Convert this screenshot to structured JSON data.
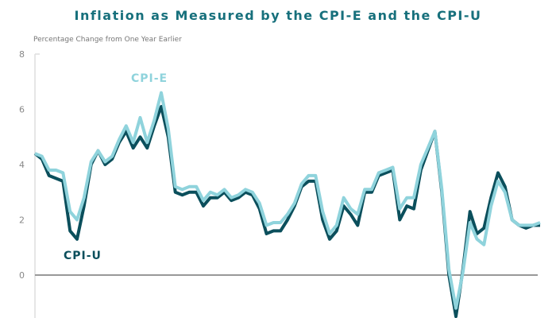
{
  "chart_data": {
    "type": "line",
    "title": "Inflation as Measured by the CPI-E and the CPI-U",
    "ylabel": "Percentage Change from One Year Earlier",
    "xlabel": "",
    "ylim": [
      -1.5,
      8
    ],
    "yticks": [
      "8",
      "6",
      "4",
      "2",
      "0"
    ],
    "grid": false,
    "x": [
      0,
      1,
      2,
      3,
      4,
      5,
      6,
      7,
      8,
      9,
      10,
      11,
      12,
      13,
      14,
      15,
      16,
      17,
      18,
      19,
      20,
      21,
      22,
      23,
      24,
      25,
      26,
      27,
      28,
      29,
      30,
      31,
      32,
      33,
      34,
      35,
      36,
      37,
      38,
      39,
      40,
      41,
      42,
      43,
      44,
      45,
      46,
      47,
      48,
      49,
      50,
      51,
      52,
      53,
      54,
      55,
      56,
      57,
      58,
      59,
      60,
      61,
      62,
      63,
      64,
      65,
      66,
      67,
      68,
      69,
      70,
      71,
      72
    ],
    "series": [
      {
        "name": "CPI-E",
        "color": "#8fd3dc",
        "values": [
          4.4,
          4.3,
          3.8,
          3.8,
          3.7,
          2.3,
          2.0,
          2.8,
          4.1,
          4.5,
          4.1,
          4.3,
          4.9,
          5.4,
          4.8,
          5.7,
          4.8,
          5.6,
          6.6,
          5.3,
          3.2,
          3.1,
          3.2,
          3.2,
          2.7,
          3.0,
          2.9,
          3.1,
          2.8,
          2.9,
          3.1,
          3.0,
          2.6,
          1.8,
          1.9,
          1.9,
          2.2,
          2.6,
          3.3,
          3.6,
          3.6,
          2.3,
          1.5,
          1.8,
          2.8,
          2.4,
          2.2,
          3.1,
          3.1,
          3.7,
          3.8,
          3.9,
          2.4,
          2.8,
          2.8,
          4.0,
          4.6,
          5.2,
          3.1,
          0.2,
          -1.2,
          0.1,
          1.9,
          1.3,
          1.1,
          2.5,
          3.4,
          3.0,
          2.0,
          1.8,
          1.8,
          1.8,
          1.9
        ],
        "label": "CPI-E"
      },
      {
        "name": "CPI-U",
        "color": "#0b4f5c",
        "values": [
          4.4,
          4.2,
          3.6,
          3.5,
          3.4,
          1.6,
          1.3,
          2.5,
          4.0,
          4.5,
          4.0,
          4.2,
          4.8,
          5.2,
          4.6,
          5.0,
          4.6,
          5.4,
          6.1,
          5.0,
          3.0,
          2.9,
          3.0,
          3.0,
          2.5,
          2.8,
          2.8,
          3.0,
          2.7,
          2.8,
          3.0,
          2.9,
          2.4,
          1.5,
          1.6,
          1.6,
          2.0,
          2.5,
          3.2,
          3.4,
          3.4,
          2.0,
          1.3,
          1.6,
          2.5,
          2.2,
          1.8,
          3.0,
          3.0,
          3.6,
          3.7,
          3.8,
          2.0,
          2.5,
          2.4,
          3.8,
          4.5,
          5.2,
          3.0,
          0.0,
          -1.5,
          0.2,
          2.3,
          1.5,
          1.7,
          2.8,
          3.7,
          3.2,
          2.0,
          1.8,
          1.7,
          1.8,
          1.8
        ],
        "label": "CPI-U"
      }
    ]
  }
}
